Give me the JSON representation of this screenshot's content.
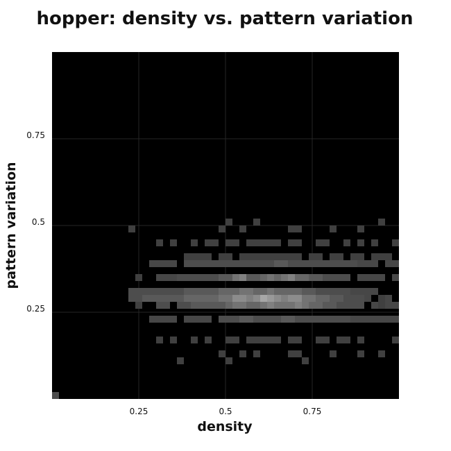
{
  "chart_data": {
    "type": "heatmap",
    "title": "hopper: density vs. pattern variation",
    "xlabel": "density",
    "ylabel": "pattern variation",
    "xlim": [
      0,
      1
    ],
    "ylim": [
      0,
      1
    ],
    "x_ticks": [
      0.25,
      0.5,
      0.75
    ],
    "y_ticks": [
      0.25,
      0.5,
      0.75
    ],
    "x_tick_labels": [
      "0.25",
      "0.5",
      "0.75"
    ],
    "y_tick_labels": [
      "0.25",
      "0.5",
      "0.75"
    ],
    "grid": true,
    "bins": [
      50,
      50
    ],
    "background_color": "#000000",
    "grid_color": "#262626",
    "cells": [
      [
        0,
        0,
        0.3
      ],
      [
        18,
        5,
        0.25
      ],
      [
        36,
        5,
        0.25
      ],
      [
        25,
        5,
        0.25
      ],
      [
        24,
        6,
        0.25
      ],
      [
        27,
        6,
        0.25
      ],
      [
        29,
        6,
        0.25
      ],
      [
        34,
        6,
        0.25
      ],
      [
        35,
        6,
        0.25
      ],
      [
        40,
        6,
        0.25
      ],
      [
        44,
        6,
        0.25
      ],
      [
        47,
        6,
        0.25
      ],
      [
        15,
        8,
        0.25
      ],
      [
        17,
        8,
        0.25
      ],
      [
        20,
        8,
        0.25
      ],
      [
        22,
        8,
        0.25
      ],
      [
        25,
        8,
        0.25
      ],
      [
        26,
        8,
        0.25
      ],
      [
        28,
        8,
        0.25
      ],
      [
        29,
        8,
        0.25
      ],
      [
        30,
        8,
        0.25
      ],
      [
        31,
        8,
        0.25
      ],
      [
        32,
        8,
        0.25
      ],
      [
        34,
        8,
        0.25
      ],
      [
        35,
        8,
        0.25
      ],
      [
        38,
        8,
        0.25
      ],
      [
        39,
        8,
        0.25
      ],
      [
        41,
        8,
        0.25
      ],
      [
        42,
        8,
        0.25
      ],
      [
        44,
        8,
        0.25
      ],
      [
        49,
        8,
        0.25
      ],
      [
        14,
        11,
        0.28
      ],
      [
        15,
        11,
        0.28
      ],
      [
        16,
        11,
        0.28
      ],
      [
        17,
        11,
        0.28
      ],
      [
        19,
        11,
        0.28
      ],
      [
        20,
        11,
        0.28
      ],
      [
        21,
        11,
        0.28
      ],
      [
        22,
        11,
        0.28
      ],
      [
        24,
        11,
        0.3
      ],
      [
        25,
        11,
        0.3
      ],
      [
        26,
        11,
        0.3
      ],
      [
        27,
        11,
        0.35
      ],
      [
        28,
        11,
        0.35
      ],
      [
        29,
        11,
        0.3
      ],
      [
        30,
        11,
        0.3
      ],
      [
        31,
        11,
        0.3
      ],
      [
        32,
        11,
        0.3
      ],
      [
        33,
        11,
        0.35
      ],
      [
        34,
        11,
        0.35
      ],
      [
        35,
        11,
        0.3
      ],
      [
        36,
        11,
        0.3
      ],
      [
        37,
        11,
        0.3
      ],
      [
        38,
        11,
        0.3
      ],
      [
        39,
        11,
        0.3
      ],
      [
        40,
        11,
        0.3
      ],
      [
        41,
        11,
        0.3
      ],
      [
        42,
        11,
        0.3
      ],
      [
        43,
        11,
        0.28
      ],
      [
        44,
        11,
        0.28
      ],
      [
        45,
        11,
        0.28
      ],
      [
        46,
        11,
        0.28
      ],
      [
        47,
        11,
        0.28
      ],
      [
        48,
        11,
        0.28
      ],
      [
        49,
        11,
        0.28
      ],
      [
        12,
        13,
        0.25
      ],
      [
        15,
        13,
        0.3
      ],
      [
        16,
        13,
        0.3
      ],
      [
        18,
        13,
        0.3
      ],
      [
        19,
        13,
        0.3
      ],
      [
        20,
        13,
        0.35
      ],
      [
        21,
        13,
        0.35
      ],
      [
        22,
        13,
        0.35
      ],
      [
        23,
        13,
        0.35
      ],
      [
        24,
        13,
        0.35
      ],
      [
        25,
        13,
        0.4
      ],
      [
        26,
        13,
        0.45
      ],
      [
        27,
        13,
        0.45
      ],
      [
        28,
        13,
        0.4
      ],
      [
        29,
        13,
        0.4
      ],
      [
        30,
        13,
        0.45
      ],
      [
        31,
        13,
        0.5
      ],
      [
        32,
        13,
        0.45
      ],
      [
        33,
        13,
        0.45
      ],
      [
        34,
        13,
        0.45
      ],
      [
        35,
        13,
        0.5
      ],
      [
        36,
        13,
        0.45
      ],
      [
        37,
        13,
        0.4
      ],
      [
        38,
        13,
        0.4
      ],
      [
        39,
        13,
        0.35
      ],
      [
        40,
        13,
        0.35
      ],
      [
        41,
        13,
        0.3
      ],
      [
        42,
        13,
        0.3
      ],
      [
        43,
        13,
        0.3
      ],
      [
        44,
        13,
        0.3
      ],
      [
        46,
        13,
        0.28
      ],
      [
        47,
        13,
        0.25
      ],
      [
        48,
        13,
        0.28
      ],
      [
        49,
        13,
        0.28
      ],
      [
        11,
        14,
        0.3
      ],
      [
        12,
        14,
        0.3
      ],
      [
        13,
        14,
        0.35
      ],
      [
        14,
        14,
        0.35
      ],
      [
        15,
        14,
        0.35
      ],
      [
        16,
        14,
        0.35
      ],
      [
        17,
        14,
        0.35
      ],
      [
        18,
        14,
        0.35
      ],
      [
        19,
        14,
        0.4
      ],
      [
        20,
        14,
        0.4
      ],
      [
        21,
        14,
        0.4
      ],
      [
        22,
        14,
        0.4
      ],
      [
        23,
        14,
        0.4
      ],
      [
        24,
        14,
        0.45
      ],
      [
        25,
        14,
        0.45
      ],
      [
        26,
        14,
        0.55
      ],
      [
        27,
        14,
        0.55
      ],
      [
        28,
        14,
        0.5
      ],
      [
        29,
        14,
        0.55
      ],
      [
        30,
        14,
        0.65
      ],
      [
        31,
        14,
        0.6
      ],
      [
        32,
        14,
        0.55
      ],
      [
        33,
        14,
        0.5
      ],
      [
        34,
        14,
        0.55
      ],
      [
        35,
        14,
        0.55
      ],
      [
        36,
        14,
        0.45
      ],
      [
        37,
        14,
        0.45
      ],
      [
        38,
        14,
        0.4
      ],
      [
        39,
        14,
        0.4
      ],
      [
        40,
        14,
        0.35
      ],
      [
        41,
        14,
        0.35
      ],
      [
        42,
        14,
        0.3
      ],
      [
        43,
        14,
        0.3
      ],
      [
        44,
        14,
        0.3
      ],
      [
        45,
        14,
        0.28
      ],
      [
        47,
        14,
        0.25
      ],
      [
        48,
        14,
        0.28
      ],
      [
        11,
        15,
        0.3
      ],
      [
        12,
        15,
        0.3
      ],
      [
        13,
        15,
        0.3
      ],
      [
        14,
        15,
        0.3
      ],
      [
        15,
        15,
        0.3
      ],
      [
        16,
        15,
        0.3
      ],
      [
        17,
        15,
        0.3
      ],
      [
        18,
        15,
        0.3
      ],
      [
        19,
        15,
        0.35
      ],
      [
        20,
        15,
        0.35
      ],
      [
        21,
        15,
        0.35
      ],
      [
        22,
        15,
        0.35
      ],
      [
        23,
        15,
        0.35
      ],
      [
        24,
        15,
        0.4
      ],
      [
        25,
        15,
        0.4
      ],
      [
        26,
        15,
        0.4
      ],
      [
        27,
        15,
        0.45
      ],
      [
        28,
        15,
        0.45
      ],
      [
        29,
        15,
        0.4
      ],
      [
        30,
        15,
        0.4
      ],
      [
        31,
        15,
        0.45
      ],
      [
        32,
        15,
        0.4
      ],
      [
        33,
        15,
        0.4
      ],
      [
        34,
        15,
        0.4
      ],
      [
        35,
        15,
        0.4
      ],
      [
        36,
        15,
        0.35
      ],
      [
        37,
        15,
        0.35
      ],
      [
        38,
        15,
        0.3
      ],
      [
        39,
        15,
        0.3
      ],
      [
        40,
        15,
        0.3
      ],
      [
        41,
        15,
        0.3
      ],
      [
        42,
        15,
        0.3
      ],
      [
        43,
        15,
        0.28
      ],
      [
        44,
        15,
        0.28
      ],
      [
        45,
        15,
        0.28
      ],
      [
        46,
        15,
        0.28
      ],
      [
        12,
        17,
        0.25
      ],
      [
        15,
        17,
        0.28
      ],
      [
        16,
        17,
        0.28
      ],
      [
        17,
        17,
        0.28
      ],
      [
        18,
        17,
        0.3
      ],
      [
        19,
        17,
        0.3
      ],
      [
        20,
        17,
        0.3
      ],
      [
        21,
        17,
        0.3
      ],
      [
        22,
        17,
        0.3
      ],
      [
        23,
        17,
        0.3
      ],
      [
        24,
        17,
        0.35
      ],
      [
        25,
        17,
        0.35
      ],
      [
        26,
        17,
        0.45
      ],
      [
        27,
        17,
        0.5
      ],
      [
        28,
        17,
        0.35
      ],
      [
        29,
        17,
        0.35
      ],
      [
        30,
        17,
        0.4
      ],
      [
        31,
        17,
        0.45
      ],
      [
        32,
        17,
        0.4
      ],
      [
        33,
        17,
        0.45
      ],
      [
        34,
        17,
        0.5
      ],
      [
        35,
        17,
        0.4
      ],
      [
        36,
        17,
        0.4
      ],
      [
        37,
        17,
        0.35
      ],
      [
        38,
        17,
        0.35
      ],
      [
        39,
        17,
        0.3
      ],
      [
        40,
        17,
        0.3
      ],
      [
        41,
        17,
        0.3
      ],
      [
        42,
        17,
        0.3
      ],
      [
        44,
        17,
        0.28
      ],
      [
        45,
        17,
        0.28
      ],
      [
        46,
        17,
        0.28
      ],
      [
        47,
        17,
        0.28
      ],
      [
        49,
        17,
        0.28
      ],
      [
        14,
        19,
        0.28
      ],
      [
        15,
        19,
        0.28
      ],
      [
        16,
        19,
        0.28
      ],
      [
        17,
        19,
        0.28
      ],
      [
        19,
        19,
        0.3
      ],
      [
        20,
        19,
        0.3
      ],
      [
        21,
        19,
        0.3
      ],
      [
        22,
        19,
        0.3
      ],
      [
        23,
        19,
        0.3
      ],
      [
        24,
        19,
        0.3
      ],
      [
        25,
        19,
        0.3
      ],
      [
        26,
        19,
        0.3
      ],
      [
        27,
        19,
        0.3
      ],
      [
        28,
        19,
        0.3
      ],
      [
        29,
        19,
        0.3
      ],
      [
        30,
        19,
        0.3
      ],
      [
        31,
        19,
        0.3
      ],
      [
        32,
        19,
        0.35
      ],
      [
        33,
        19,
        0.35
      ],
      [
        34,
        19,
        0.3
      ],
      [
        35,
        19,
        0.3
      ],
      [
        36,
        19,
        0.3
      ],
      [
        37,
        19,
        0.3
      ],
      [
        38,
        19,
        0.3
      ],
      [
        39,
        19,
        0.3
      ],
      [
        40,
        19,
        0.3
      ],
      [
        41,
        19,
        0.3
      ],
      [
        42,
        19,
        0.3
      ],
      [
        43,
        19,
        0.3
      ],
      [
        44,
        19,
        0.28
      ],
      [
        45,
        19,
        0.28
      ],
      [
        46,
        19,
        0.28
      ],
      [
        48,
        19,
        0.28
      ],
      [
        49,
        19,
        0.28
      ],
      [
        19,
        20,
        0.25
      ],
      [
        20,
        20,
        0.25
      ],
      [
        21,
        20,
        0.25
      ],
      [
        22,
        20,
        0.25
      ],
      [
        24,
        20,
        0.25
      ],
      [
        25,
        20,
        0.25
      ],
      [
        27,
        20,
        0.25
      ],
      [
        28,
        20,
        0.25
      ],
      [
        29,
        20,
        0.25
      ],
      [
        30,
        20,
        0.25
      ],
      [
        31,
        20,
        0.25
      ],
      [
        32,
        20,
        0.25
      ],
      [
        33,
        20,
        0.25
      ],
      [
        34,
        20,
        0.25
      ],
      [
        35,
        20,
        0.25
      ],
      [
        37,
        20,
        0.25
      ],
      [
        38,
        20,
        0.25
      ],
      [
        40,
        20,
        0.25
      ],
      [
        41,
        20,
        0.25
      ],
      [
        43,
        20,
        0.25
      ],
      [
        44,
        20,
        0.25
      ],
      [
        46,
        20,
        0.25
      ],
      [
        47,
        20,
        0.25
      ],
      [
        48,
        20,
        0.25
      ],
      [
        15,
        22,
        0.25
      ],
      [
        17,
        22,
        0.25
      ],
      [
        20,
        22,
        0.25
      ],
      [
        22,
        22,
        0.25
      ],
      [
        23,
        22,
        0.25
      ],
      [
        25,
        22,
        0.25
      ],
      [
        26,
        22,
        0.25
      ],
      [
        28,
        22,
        0.25
      ],
      [
        29,
        22,
        0.25
      ],
      [
        30,
        22,
        0.25
      ],
      [
        31,
        22,
        0.25
      ],
      [
        32,
        22,
        0.25
      ],
      [
        34,
        22,
        0.25
      ],
      [
        35,
        22,
        0.25
      ],
      [
        38,
        22,
        0.25
      ],
      [
        39,
        22,
        0.25
      ],
      [
        42,
        22,
        0.25
      ],
      [
        44,
        22,
        0.25
      ],
      [
        46,
        22,
        0.25
      ],
      [
        49,
        22,
        0.25
      ],
      [
        11,
        24,
        0.25
      ],
      [
        24,
        24,
        0.25
      ],
      [
        27,
        24,
        0.25
      ],
      [
        34,
        24,
        0.25
      ],
      [
        35,
        24,
        0.25
      ],
      [
        40,
        24,
        0.25
      ],
      [
        44,
        24,
        0.25
      ],
      [
        25,
        25,
        0.25
      ],
      [
        29,
        25,
        0.25
      ],
      [
        47,
        25,
        0.25
      ]
    ]
  }
}
